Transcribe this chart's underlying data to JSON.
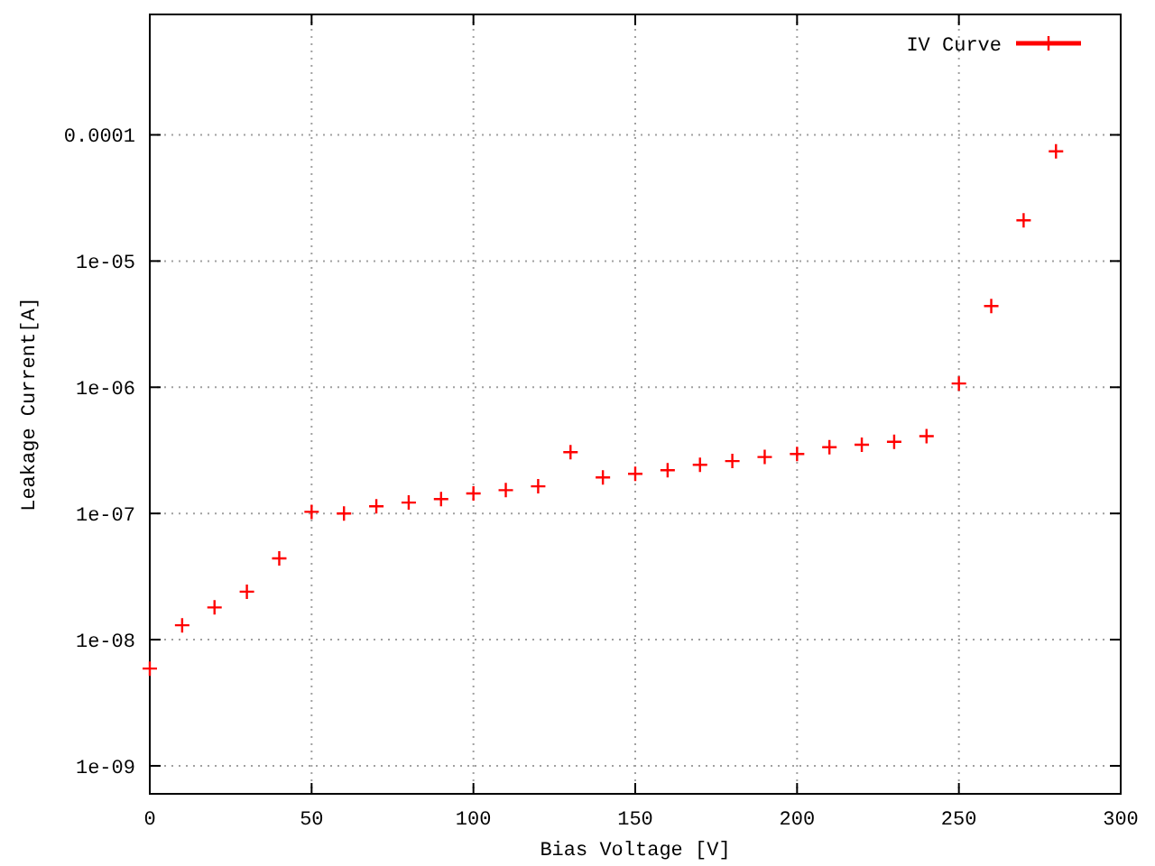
{
  "chart_data": {
    "type": "scatter",
    "xlabel": "Bias Voltage [V]",
    "ylabel": "Leakage Current[A]",
    "log": "y",
    "grid": true,
    "legend": "top right",
    "marker": "cross",
    "xlim": [
      0,
      300
    ],
    "xticks": [
      0,
      50,
      100,
      150,
      200,
      250,
      300
    ],
    "ylim": [
      6e-10,
      0.0009
    ],
    "yticks": [
      {
        "value": 1e-09,
        "label": "1e-09"
      },
      {
        "value": 1e-08,
        "label": "1e-08"
      },
      {
        "value": 1e-07,
        "label": "1e-07"
      },
      {
        "value": 1e-06,
        "label": "1e-06"
      },
      {
        "value": 1e-05,
        "label": "1e-05"
      },
      0.0001
    ],
    "series": [
      {
        "name": "IV Curve",
        "color": "#ff0000",
        "x": [
          0,
          10,
          20,
          30,
          40,
          50,
          60,
          70,
          80,
          90,
          100,
          110,
          120,
          130,
          140,
          150,
          160,
          170,
          180,
          190,
          200,
          210,
          220,
          230,
          240,
          250,
          260,
          270,
          280
        ],
        "values": [
          5.9e-09,
          1.3e-08,
          1.8e-08,
          2.4e-08,
          4.4e-08,
          1.03e-07,
          1e-07,
          1.14e-07,
          1.22e-07,
          1.3e-07,
          1.44e-07,
          1.53e-07,
          1.64e-07,
          3.06e-07,
          1.93e-07,
          2.06e-07,
          2.2e-07,
          2.43e-07,
          2.6e-07,
          2.8e-07,
          2.96e-07,
          3.35e-07,
          3.5e-07,
          3.7e-07,
          4.1e-07,
          1.07e-06,
          4.4e-06,
          2.1e-05,
          7.4e-05
        ]
      }
    ]
  }
}
